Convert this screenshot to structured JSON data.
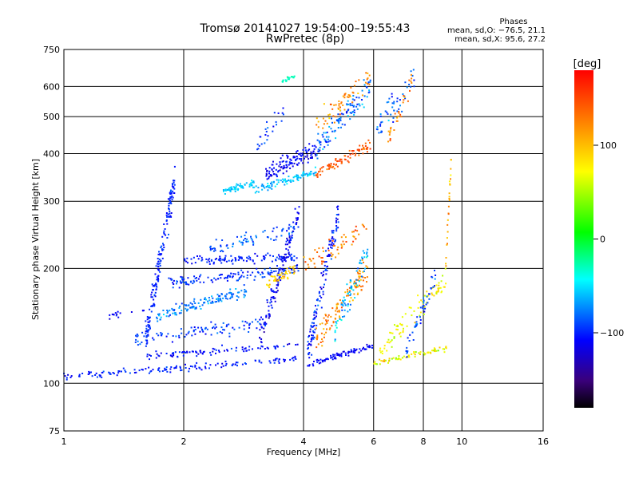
{
  "chart_data": {
    "type": "scatter",
    "title": "Tromsø 20141027 19:54:00–19:55:43",
    "subtitle": "RwPretec (8p)",
    "xlabel": "Frequency [MHz]",
    "ylabel": "Stationary phase Virtual Height [km]",
    "x_scale": "log",
    "y_scale": "log",
    "xlim": [
      1,
      16
    ],
    "ylim": [
      75,
      750
    ],
    "x_ticks": [
      "1",
      "2",
      "4",
      "6",
      "8",
      "10",
      "16"
    ],
    "x_tick_values": [
      1,
      2,
      4,
      6,
      8,
      10,
      16
    ],
    "y_ticks": [
      "75",
      "100",
      "200",
      "300",
      "400",
      "500",
      "600",
      "750"
    ],
    "y_tick_values": [
      75,
      100,
      200,
      300,
      400,
      500,
      600,
      750
    ],
    "grid": true,
    "phase_info": {
      "heading": "Phases",
      "line_o": "mean, sd,O: −76.5, 21.1",
      "line_x": "mean, sd,X:  95.6, 27.2"
    },
    "colorbar": {
      "label": "[deg]",
      "range": [
        -180,
        180
      ],
      "ticks": [
        "100",
        "0",
        "−100"
      ],
      "tick_values": [
        100,
        0,
        -100
      ]
    },
    "series": [
      {
        "traces": [
          {
            "f0": 1.0,
            "f1": 3.9,
            "h0": 104,
            "h1": 116,
            "n": 140,
            "phase": -100,
            "jh": 0.025,
            "pj": 20
          },
          {
            "f0": 1.6,
            "f1": 3.9,
            "h0": 118,
            "h1": 126,
            "n": 90,
            "phase": -105,
            "jh": 0.03,
            "pj": 20
          },
          {
            "f0": 4.0,
            "f1": 6.0,
            "h0": 111,
            "h1": 126,
            "n": 80,
            "phase": -110,
            "jh": 0.02,
            "pj": 15
          },
          {
            "f0": 6.0,
            "f1": 9.3,
            "h0": 113,
            "h1": 124,
            "n": 70,
            "phase": 70,
            "jh": 0.02,
            "pj": 40
          },
          {
            "f0": 1.5,
            "f1": 3.3,
            "h0": 130,
            "h1": 145,
            "n": 100,
            "phase": -95,
            "jh": 0.05,
            "pj": 25
          },
          {
            "f0": 1.6,
            "f1": 1.9,
            "h0": 130,
            "h1": 340,
            "n": 170,
            "phase": -100,
            "jh": 0.12,
            "pj": 20
          },
          {
            "f0": 1.7,
            "f1": 2.9,
            "h0": 150,
            "h1": 175,
            "n": 130,
            "phase": -75,
            "jh": 0.05,
            "pj": 25
          },
          {
            "f0": 1.8,
            "f1": 3.9,
            "h0": 182,
            "h1": 200,
            "n": 130,
            "phase": -95,
            "jh": 0.04,
            "pj": 25
          },
          {
            "f0": 2.0,
            "f1": 3.9,
            "h0": 210,
            "h1": 214,
            "n": 110,
            "phase": -100,
            "jh": 0.03,
            "pj": 20
          },
          {
            "f0": 2.3,
            "f1": 3.8,
            "h0": 225,
            "h1": 255,
            "n": 70,
            "phase": -85,
            "jh": 0.05,
            "pj": 25
          },
          {
            "f0": 3.1,
            "f1": 3.9,
            "h0": 130,
            "h1": 280,
            "n": 120,
            "phase": -110,
            "jh": 0.1,
            "pj": 25
          },
          {
            "f0": 3.2,
            "f1": 3.8,
            "h0": 180,
            "h1": 200,
            "n": 45,
            "phase": 90,
            "jh": 0.04,
            "pj": 30
          },
          {
            "f0": 4.1,
            "f1": 4.9,
            "h0": 120,
            "h1": 280,
            "n": 130,
            "phase": -100,
            "jh": 0.12,
            "pj": 30
          },
          {
            "f0": 4.3,
            "f1": 5.8,
            "h0": 130,
            "h1": 200,
            "n": 110,
            "phase": 120,
            "jh": 0.1,
            "pj": 40
          },
          {
            "f0": 4.8,
            "f1": 5.8,
            "h0": 140,
            "h1": 220,
            "n": 70,
            "phase": -60,
            "jh": 0.1,
            "pj": 40
          },
          {
            "f0": 4.0,
            "f1": 5.8,
            "h0": 200,
            "h1": 260,
            "n": 60,
            "phase": 130,
            "jh": 0.08,
            "pj": 40
          },
          {
            "f0": 6.2,
            "f1": 9.2,
            "h0": 120,
            "h1": 190,
            "n": 90,
            "phase": 75,
            "jh": 0.08,
            "pj": 35
          },
          {
            "f0": 7.2,
            "f1": 8.6,
            "h0": 120,
            "h1": 190,
            "n": 50,
            "phase": -90,
            "jh": 0.08,
            "pj": 30
          },
          {
            "f0": 2.5,
            "f1": 3.0,
            "h0": 318,
            "h1": 335,
            "n": 60,
            "phase": -55,
            "jh": 0.025,
            "pj": 15
          },
          {
            "f0": 3.0,
            "f1": 4.3,
            "h0": 320,
            "h1": 360,
            "n": 90,
            "phase": -60,
            "jh": 0.03,
            "pj": 20
          },
          {
            "f0": 4.3,
            "f1": 5.9,
            "h0": 355,
            "h1": 420,
            "n": 80,
            "phase": 145,
            "jh": 0.04,
            "pj": 25
          },
          {
            "f0": 3.2,
            "f1": 4.4,
            "h0": 355,
            "h1": 410,
            "n": 130,
            "phase": -110,
            "jh": 0.06,
            "pj": 20
          },
          {
            "f0": 4.3,
            "f1": 5.9,
            "h0": 410,
            "h1": 600,
            "n": 110,
            "phase": -80,
            "jh": 0.1,
            "pj": 40
          },
          {
            "f0": 4.3,
            "f1": 5.9,
            "h0": 470,
            "h1": 640,
            "n": 60,
            "phase": 120,
            "jh": 0.08,
            "pj": 40
          },
          {
            "f0": 6.1,
            "f1": 7.6,
            "h0": 460,
            "h1": 640,
            "n": 50,
            "phase": -85,
            "jh": 0.1,
            "pj": 35
          },
          {
            "f0": 6.5,
            "f1": 7.5,
            "h0": 430,
            "h1": 620,
            "n": 30,
            "phase": 130,
            "jh": 0.08,
            "pj": 40
          },
          {
            "f0": 3.5,
            "f1": 3.8,
            "h0": 615,
            "h1": 640,
            "n": 20,
            "phase": -30,
            "jh": 0.02,
            "pj": 15
          },
          {
            "f0": 9.1,
            "f1": 9.4,
            "h0": 200,
            "h1": 380,
            "n": 25,
            "phase": 110,
            "jh": 0.08,
            "pj": 40
          },
          {
            "f0": 1.3,
            "f1": 1.6,
            "h0": 150,
            "h1": 155,
            "n": 15,
            "phase": -110,
            "jh": 0.02,
            "pj": 15
          },
          {
            "f0": 3.0,
            "f1": 3.6,
            "h0": 410,
            "h1": 520,
            "n": 25,
            "phase": -95,
            "jh": 0.08,
            "pj": 25
          }
        ]
      }
    ]
  }
}
